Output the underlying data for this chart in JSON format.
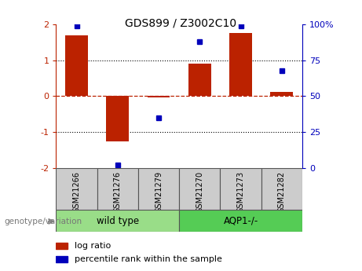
{
  "title": "GDS899 / Z3002C10",
  "samples": [
    "GSM21266",
    "GSM21276",
    "GSM21279",
    "GSM21270",
    "GSM21273",
    "GSM21282"
  ],
  "log_ratio": [
    1.7,
    -1.25,
    -0.03,
    0.9,
    1.75,
    0.12
  ],
  "percentile_rank": [
    99,
    2,
    35,
    88,
    99,
    68
  ],
  "ylim_left": [
    -2,
    2
  ],
  "ylim_right": [
    0,
    100
  ],
  "bar_color": "#bb2200",
  "dot_color": "#0000bb",
  "left_ticks": [
    -2,
    -1,
    0,
    1,
    2
  ],
  "right_ticks": [
    0,
    25,
    50,
    75,
    100
  ],
  "right_tick_labels": [
    "0",
    "25",
    "50",
    "75",
    "100%"
  ],
  "groups": [
    {
      "label": "wild type",
      "start": 0,
      "end": 3,
      "color": "#99dd88"
    },
    {
      "label": "AQP1-/-",
      "start": 3,
      "end": 6,
      "color": "#55cc55"
    }
  ],
  "genotype_label": "genotype/variation",
  "legend_items": [
    "log ratio",
    "percentile rank within the sample"
  ],
  "sample_box_color": "#cccccc",
  "bg_color": "#ffffff"
}
